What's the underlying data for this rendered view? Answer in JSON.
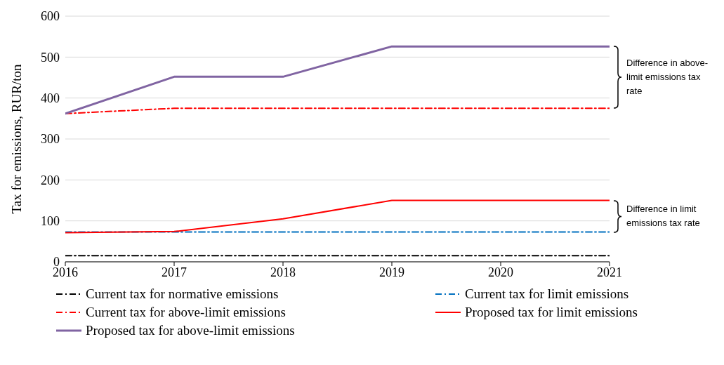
{
  "chart_data": {
    "type": "line",
    "ylabel": "Tax for emissions, RUR/ton",
    "x": [
      2016,
      2017,
      2018,
      2019,
      2020,
      2021
    ],
    "xlim": [
      2016,
      2021
    ],
    "xticks": [
      2016,
      2017,
      2018,
      2019,
      2020,
      2021
    ],
    "ylim": [
      0,
      600
    ],
    "yticks": [
      0,
      100,
      200,
      300,
      400,
      500,
      600
    ],
    "grid": "y",
    "legend": "bottom",
    "marker": "none",
    "series": [
      {
        "name": "Current tax for normative emissions",
        "color": "#000000",
        "line_style": "dashed",
        "values": [
          15,
          15,
          15,
          15,
          15,
          15
        ]
      },
      {
        "name": "Current tax for limit emissions",
        "color": "#0070c0",
        "line_style": "dashed",
        "values": [
          73,
          73,
          73,
          73,
          73,
          73
        ]
      },
      {
        "name": "Current tax for above-limit emissions",
        "color": "#ff0000",
        "line_style": "dashed",
        "values": [
          362,
          375,
          375,
          375,
          375,
          375
        ]
      },
      {
        "name": "Proposed tax for limit emissions",
        "color": "#ff0000",
        "line_style": "solid",
        "values": [
          71,
          74,
          105,
          150,
          150,
          150
        ]
      },
      {
        "name": "Proposed tax for above-limit emissions",
        "color": "#8064a2",
        "line_style": "solid",
        "values": [
          362,
          452,
          452,
          526,
          526,
          526
        ]
      }
    ],
    "annotations": [
      "Difference in above-limit emissions tax rate",
      "Difference in limit emissions tax rate"
    ]
  }
}
